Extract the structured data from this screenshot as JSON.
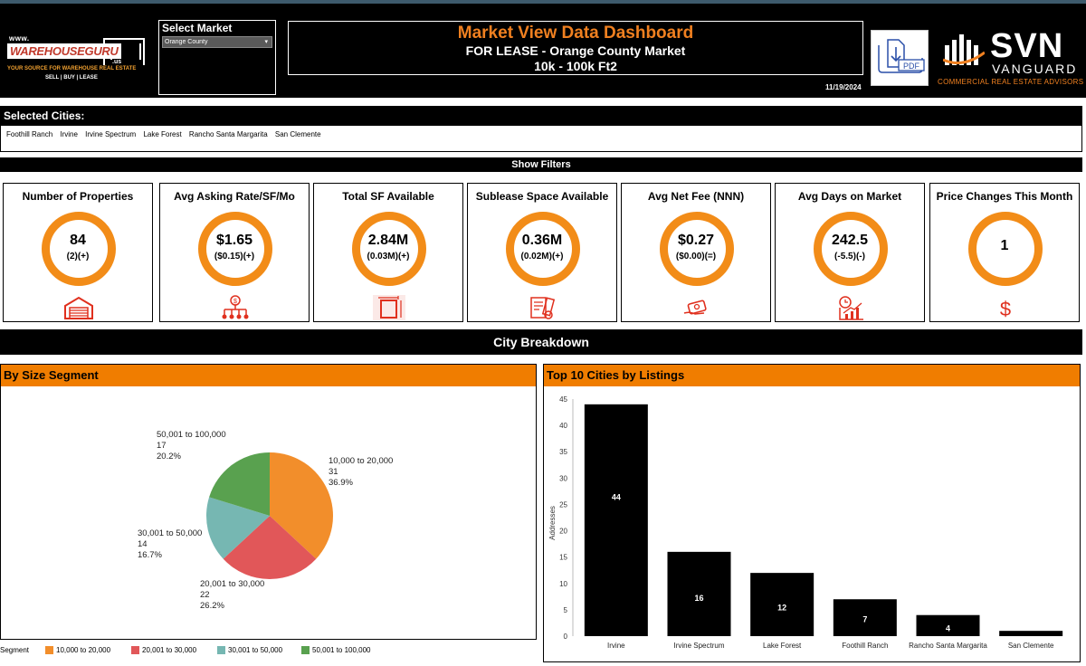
{
  "header": {
    "logo_left": {
      "small": "www.",
      "name": "WAREHOUSEGURU",
      "suffix": ".us",
      "tagline": "YOUR SOURCE FOR WAREHOUSE REAL ESTATE",
      "sub": "SELL | BUY | LEASE"
    },
    "market_label": "Select Market",
    "market_value": "Orange County",
    "title": "Market View Data Dashboard",
    "subtitle1": "FOR LEASE - Orange County Market",
    "subtitle2": "10k - 100k Ft2",
    "date": "11/19/2024",
    "pdf_label": "PDF",
    "logo_right": {
      "name": "SVN",
      "sub": "VANGUARD",
      "caption": "COMMERCIAL REAL ESTATE ADVISORS"
    }
  },
  "cities": {
    "label": "Selected Cities:",
    "list": [
      "Foothill Ranch",
      "Irvine",
      "Irvine Spectrum",
      "Lake Forest",
      "Rancho Santa Margarita",
      "San Clemente"
    ]
  },
  "filters_label": "Show Filters",
  "kpis": [
    {
      "title": "Number of Properties",
      "value": "84",
      "change": "(2)(+)",
      "icon": "warehouse-icon"
    },
    {
      "title": "Avg Asking Rate/SF/Mo",
      "value": "$1.65",
      "change": "($0.15)(+)",
      "icon": "money-network-icon"
    },
    {
      "title": "Total SF Available",
      "value": "2.84M",
      "change": "(0.03M)(+)",
      "icon": "area-frame-icon"
    },
    {
      "title": "Sublease Space Available",
      "value": "0.36M",
      "change": "(0.02M)(+)",
      "icon": "blueprint-icon"
    },
    {
      "title": "Avg Net Fee (NNN)",
      "value": "$0.27",
      "change": "($0.00)(=)",
      "icon": "cash-hand-icon"
    },
    {
      "title": "Avg Days on Market",
      "value": "242.5",
      "change": "(-5.5)(-)",
      "icon": "clock-chart-icon"
    },
    {
      "title": "Price Changes This Month",
      "value": "1",
      "change": "",
      "icon": "dollar-sign-icon"
    }
  ],
  "breakdown_label": "City Breakdown",
  "colors": {
    "accent": "#f07d00",
    "ring": "#f28c18"
  },
  "chart_data": [
    {
      "type": "pie",
      "title": "By Size Segment",
      "legend_title": "Segment",
      "legend_position": "bottom",
      "slices": [
        {
          "label": "10,000 to 20,000",
          "value": 31,
          "percent": "36.9%",
          "color": "#f28e2b"
        },
        {
          "label": "20,001 to 30,000",
          "value": 22,
          "percent": "26.2%",
          "color": "#e15759"
        },
        {
          "label": "30,001 to 50,000",
          "value": 14,
          "percent": "16.7%",
          "color": "#76b7b2"
        },
        {
          "label": "50,001 to 100,000",
          "value": 17,
          "percent": "20.2%",
          "color": "#59a14f"
        }
      ]
    },
    {
      "type": "bar",
      "title": "Top 10 Cities by Listings",
      "ylabel": "Addresses",
      "ylim": [
        0,
        45
      ],
      "yticks": [
        0,
        5,
        10,
        15,
        20,
        25,
        30,
        35,
        40,
        45
      ],
      "categories": [
        "Irvine",
        "Irvine Spectrum",
        "Lake Forest",
        "Foothill Ranch",
        "Rancho Santa Margarita",
        "San Clemente"
      ],
      "values": [
        44,
        16,
        12,
        7,
        4,
        1
      ],
      "bar_labels": [
        "44",
        "16",
        "12",
        "7",
        "4",
        ""
      ],
      "color": "#000000"
    }
  ]
}
